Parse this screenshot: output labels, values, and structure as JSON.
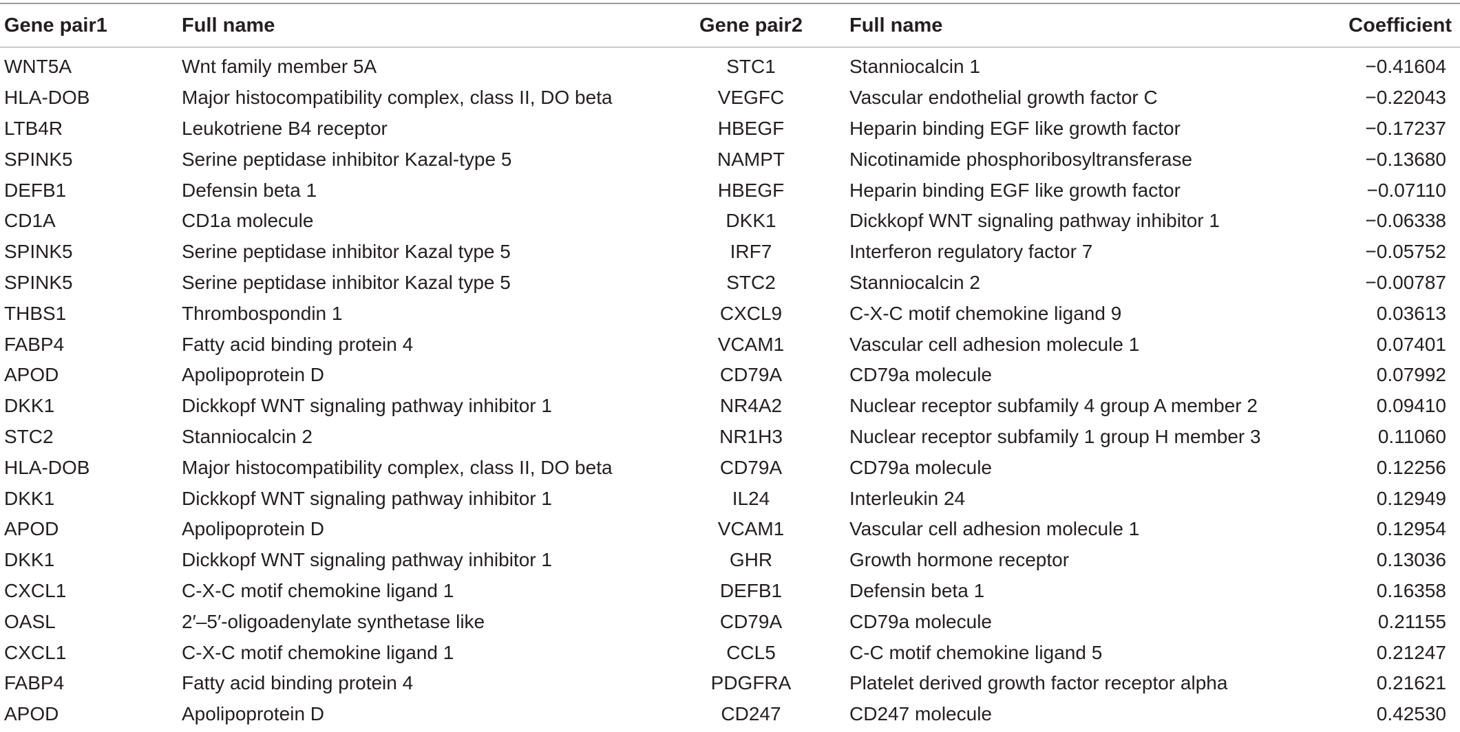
{
  "table": {
    "headers": [
      "Gene pair1",
      "Full name",
      "Gene pair2",
      "Full name",
      "Coefficient"
    ],
    "rows": [
      [
        "WNT5A",
        "Wnt family member 5A",
        "STC1",
        "Stanniocalcin 1",
        "−0.41604"
      ],
      [
        "HLA-DOB",
        "Major histocompatibility complex, class II, DO beta",
        "VEGFC",
        "Vascular endothelial growth factor C",
        "−0.22043"
      ],
      [
        "LTB4R",
        "Leukotriene B4 receptor",
        "HBEGF",
        "Heparin binding EGF like growth factor",
        "−0.17237"
      ],
      [
        "SPINK5",
        "Serine peptidase inhibitor Kazal-type 5",
        "NAMPT",
        "Nicotinamide phosphoribosyltransferase",
        "−0.13680"
      ],
      [
        "DEFB1",
        "Defensin beta 1",
        "HBEGF",
        "Heparin binding EGF like growth factor",
        "−0.07110"
      ],
      [
        "CD1A",
        "CD1a molecule",
        "DKK1",
        "Dickkopf WNT signaling pathway inhibitor 1",
        "−0.06338"
      ],
      [
        "SPINK5",
        "Serine peptidase inhibitor Kazal type 5",
        "IRF7",
        "Interferon regulatory factor 7",
        "−0.05752"
      ],
      [
        "SPINK5",
        "Serine peptidase inhibitor Kazal type 5",
        "STC2",
        "Stanniocalcin 2",
        "−0.00787"
      ],
      [
        "THBS1",
        "Thrombospondin 1",
        "CXCL9",
        "C-X-C motif chemokine ligand 9",
        "0.03613"
      ],
      [
        "FABP4",
        "Fatty acid binding protein 4",
        "VCAM1",
        "Vascular cell adhesion molecule 1",
        "0.07401"
      ],
      [
        "APOD",
        "Apolipoprotein D",
        "CD79A",
        "CD79a molecule",
        "0.07992"
      ],
      [
        "DKK1",
        "Dickkopf WNT signaling pathway inhibitor 1",
        "NR4A2",
        "Nuclear receptor subfamily 4 group A member 2",
        "0.09410"
      ],
      [
        "STC2",
        "Stanniocalcin 2",
        "NR1H3",
        "Nuclear receptor subfamily 1 group H member 3",
        "0.11060"
      ],
      [
        "HLA-DOB",
        "Major histocompatibility complex, class II, DO beta",
        "CD79A",
        "CD79a molecule",
        "0.12256"
      ],
      [
        "DKK1",
        "Dickkopf WNT signaling pathway inhibitor 1",
        "IL24",
        "Interleukin 24",
        "0.12949"
      ],
      [
        "APOD",
        "Apolipoprotein D",
        "VCAM1",
        "Vascular cell adhesion molecule 1",
        "0.12954"
      ],
      [
        "DKK1",
        "Dickkopf WNT signaling pathway inhibitor 1",
        "GHR",
        "Growth hormone receptor",
        "0.13036"
      ],
      [
        "CXCL1",
        "C-X-C motif chemokine ligand 1",
        "DEFB1",
        "Defensin beta 1",
        "0.16358"
      ],
      [
        "OASL",
        "2′–5′-oligoadenylate synthetase like",
        "CD79A",
        "CD79a molecule",
        "0.21155"
      ],
      [
        "CXCL1",
        "C-X-C motif chemokine ligand 1",
        "CCL5",
        "C-C motif chemokine ligand 5",
        "0.21247"
      ],
      [
        "FABP4",
        "Fatty acid binding protein 4",
        "PDGFRA",
        "Platelet derived growth factor receptor alpha",
        "0.21621"
      ],
      [
        "APOD",
        "Apolipoprotein D",
        "CD247",
        "CD247 molecule",
        "0.42530"
      ]
    ]
  }
}
